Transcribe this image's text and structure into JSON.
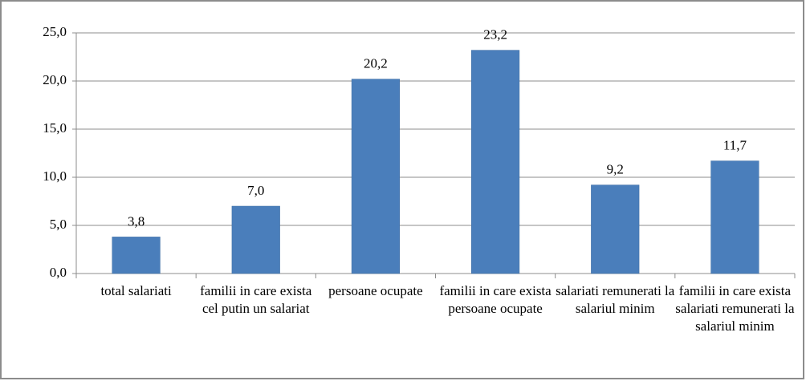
{
  "chart_data": {
    "type": "bar",
    "categories": [
      "total salariati",
      "familii in care exista cel putin un salariat",
      "persoane ocupate",
      "familii in care exista persoane ocupate",
      "salariati remunerati la salariul minim",
      "familii in care exista salariati remunerati la salariul minim"
    ],
    "values": [
      3.8,
      7.0,
      20.2,
      23.2,
      9.2,
      11.7
    ],
    "value_labels": [
      "3,8",
      "7,0",
      "20,2",
      "23,2",
      "9,2",
      "11,7"
    ],
    "color": "#4a7ebb",
    "ylim": [
      0,
      25
    ],
    "yticks": [
      {
        "value": 0,
        "label": "0,0"
      },
      {
        "value": 5,
        "label": "5,0"
      },
      {
        "value": 10,
        "label": "10,0"
      },
      {
        "value": 15,
        "label": "15,0"
      },
      {
        "value": 20,
        "label": "20,0"
      },
      {
        "value": 25,
        "label": "25,0"
      }
    ],
    "grid": true
  }
}
